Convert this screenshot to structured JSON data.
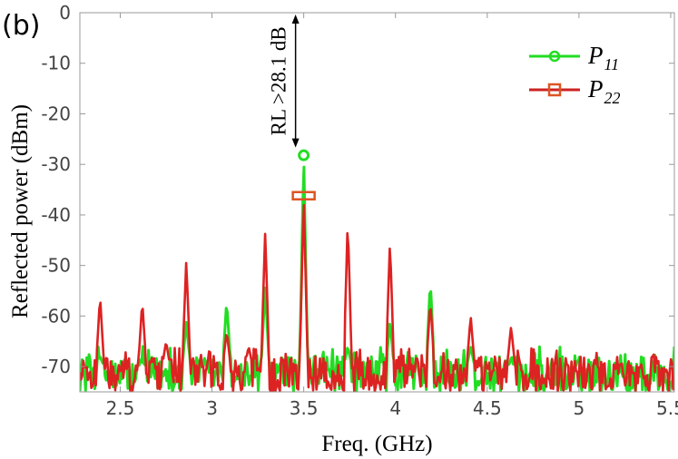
{
  "chart_data": {
    "type": "line",
    "panel_label": "(b)",
    "xlabel": "Freq. (GHz)",
    "ylabel": "Reflected power (dBm)",
    "xlim": [
      2.28,
      5.52
    ],
    "ylim": [
      -75,
      0
    ],
    "x_ticks": [
      2.5,
      3,
      3.5,
      4,
      4.5,
      5,
      5.5
    ],
    "x_tick_labels": [
      "2.5",
      "3",
      "3.5",
      "4",
      "4.5",
      "5",
      "5.5"
    ],
    "y_ticks": [
      0,
      -10,
      -20,
      -30,
      -40,
      -50,
      -60,
      -70
    ],
    "y_tick_labels": [
      "0",
      "-10",
      "-20",
      "-30",
      "-40",
      "-50",
      "-60",
      "-70"
    ],
    "grid": false,
    "legend_position": "top-right",
    "annotation": {
      "text": "RL >28.1 dB",
      "x": 3.5,
      "y_from": 0,
      "y_to": -28.1
    },
    "series": [
      {
        "name": "P",
        "name_subscript": "11",
        "color": "#22dd22",
        "marker": "circle",
        "marker_point": [
          3.5,
          -28.2
        ],
        "peaks": [
          [
            2.39,
            -68
          ],
          [
            2.62,
            -69
          ],
          [
            2.86,
            -61
          ],
          [
            3.08,
            -57
          ],
          [
            3.29,
            -54
          ],
          [
            3.5,
            -28.2
          ],
          [
            3.74,
            -66
          ],
          [
            3.97,
            -61
          ],
          [
            4.19,
            -53
          ],
          [
            4.41,
            -66
          ],
          [
            4.63,
            -69
          ]
        ]
      },
      {
        "name": "P",
        "name_subscript": "22",
        "color": "#dd2222",
        "marker": "square",
        "marker_point": [
          3.5,
          -36.2
        ],
        "peaks": [
          [
            2.39,
            -56
          ],
          [
            2.62,
            -57
          ],
          [
            2.75,
            -65
          ],
          [
            2.86,
            -49
          ],
          [
            3.08,
            -63
          ],
          [
            3.2,
            -66
          ],
          [
            3.29,
            -43
          ],
          [
            3.5,
            -36.2
          ],
          [
            3.74,
            -41
          ],
          [
            3.97,
            -45
          ],
          [
            4.19,
            -57
          ],
          [
            4.41,
            -60
          ],
          [
            4.63,
            -62
          ]
        ]
      }
    ]
  }
}
